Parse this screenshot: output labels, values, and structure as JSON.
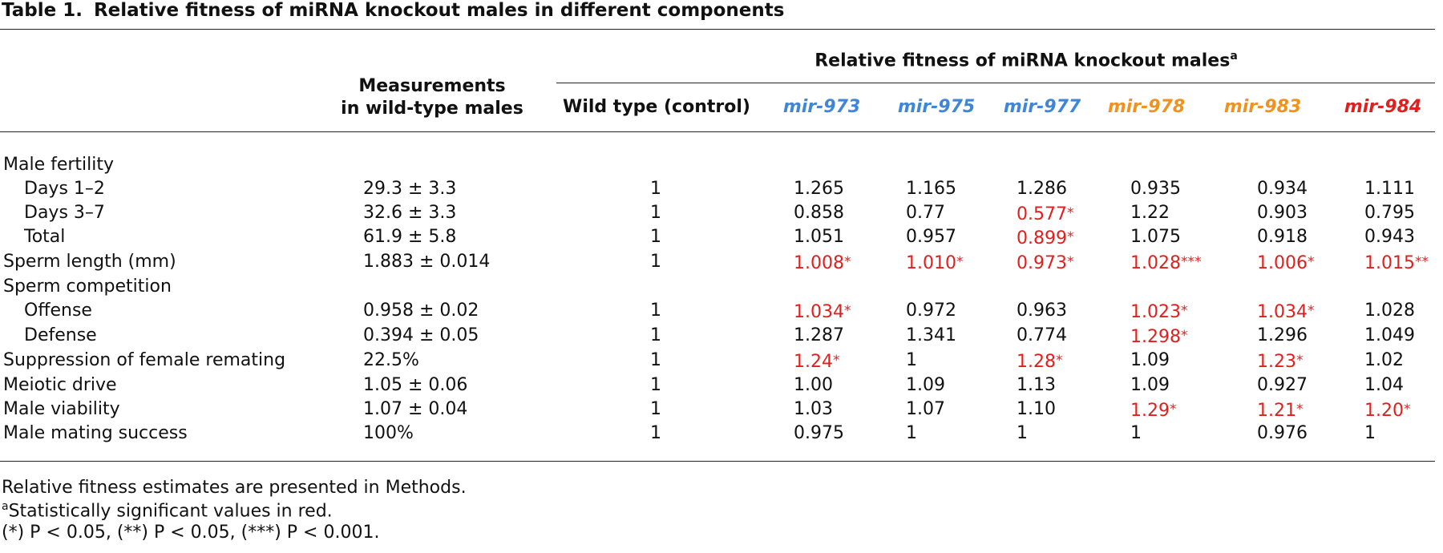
{
  "caption": {
    "label": "Table 1.",
    "title": "Relative fitness of miRNA knockout males in different components"
  },
  "header": {
    "group_label": "Relative fitness of miRNA knockout males",
    "group_sup": "a",
    "measurements_line1": "Measurements",
    "measurements_line2": "in wild-type males",
    "control_label": "Wild type (control)"
  },
  "colors": {
    "blue": "#3f86d9",
    "orange": "#f0921f",
    "red": "#e0201e"
  },
  "mirnas": [
    {
      "name": "mir-973",
      "color": "#3f86d9"
    },
    {
      "name": "mir-975",
      "color": "#3f86d9"
    },
    {
      "name": "mir-977",
      "color": "#3f86d9"
    },
    {
      "name": "mir-978",
      "color": "#f0921f"
    },
    {
      "name": "mir-983",
      "color": "#f0921f"
    },
    {
      "name": "mir-984",
      "color": "#e0201e"
    }
  ],
  "rows": [
    {
      "label": "Male fertility",
      "indent": false,
      "measurement": "",
      "control": "",
      "values": []
    },
    {
      "label": "Days 1–2",
      "indent": true,
      "measurement": "29.3 ± 3.3",
      "control": "1",
      "values": [
        {
          "v": "1.265"
        },
        {
          "v": "1.165"
        },
        {
          "v": "1.286"
        },
        {
          "v": "0.935"
        },
        {
          "v": "0.934"
        },
        {
          "v": "1.111"
        }
      ]
    },
    {
      "label": "Days 3–7",
      "indent": true,
      "measurement": "32.6 ± 3.3",
      "control": "1",
      "values": [
        {
          "v": "0.858"
        },
        {
          "v": "0.77"
        },
        {
          "v": "0.577",
          "sig": "*"
        },
        {
          "v": "1.22"
        },
        {
          "v": "0.903"
        },
        {
          "v": "0.795"
        }
      ]
    },
    {
      "label": "Total",
      "indent": true,
      "measurement": "61.9 ± 5.8",
      "control": "1",
      "values": [
        {
          "v": "1.051"
        },
        {
          "v": "0.957"
        },
        {
          "v": "0.899",
          "sig": "*"
        },
        {
          "v": "1.075"
        },
        {
          "v": "0.918"
        },
        {
          "v": "0.943"
        }
      ]
    },
    {
      "label": "Sperm length (mm)",
      "indent": false,
      "measurement": "1.883 ± 0.014",
      "control": "1",
      "values": [
        {
          "v": "1.008",
          "sig": "*"
        },
        {
          "v": "1.010",
          "sig": "*"
        },
        {
          "v": "0.973",
          "sig": "*"
        },
        {
          "v": "1.028",
          "sig": "***"
        },
        {
          "v": "1.006",
          "sig": "*"
        },
        {
          "v": "1.015",
          "sig": "**"
        }
      ]
    },
    {
      "label": "Sperm competition",
      "indent": false,
      "measurement": "",
      "control": "",
      "values": []
    },
    {
      "label": "Offense",
      "indent": true,
      "measurement": "0.958 ± 0.02",
      "control": "1",
      "values": [
        {
          "v": "1.034",
          "sig": "*"
        },
        {
          "v": "0.972"
        },
        {
          "v": "0.963"
        },
        {
          "v": "1.023",
          "sig": "*"
        },
        {
          "v": "1.034",
          "sig": "*"
        },
        {
          "v": "1.028"
        }
      ]
    },
    {
      "label": "Defense",
      "indent": true,
      "measurement": "0.394 ± 0.05",
      "control": "1",
      "values": [
        {
          "v": "1.287"
        },
        {
          "v": "1.341"
        },
        {
          "v": "0.774"
        },
        {
          "v": "1.298",
          "sig": "*"
        },
        {
          "v": "1.296"
        },
        {
          "v": "1.049"
        }
      ]
    },
    {
      "label": "Suppression of female remating",
      "indent": false,
      "measurement": "22.5%",
      "control": "1",
      "values": [
        {
          "v": "1.24",
          "sig": "*"
        },
        {
          "v": "1"
        },
        {
          "v": "1.28",
          "sig": "*"
        },
        {
          "v": "1.09"
        },
        {
          "v": "1.23",
          "sig": "*"
        },
        {
          "v": "1.02"
        }
      ]
    },
    {
      "label": "Meiotic drive",
      "indent": false,
      "measurement": "1.05 ± 0.06",
      "control": "1",
      "values": [
        {
          "v": "1.00"
        },
        {
          "v": "1.09"
        },
        {
          "v": "1.13"
        },
        {
          "v": "1.09"
        },
        {
          "v": "0.927"
        },
        {
          "v": "1.04"
        }
      ]
    },
    {
      "label": "Male viability",
      "indent": false,
      "measurement": "1.07 ± 0.04",
      "control": "1",
      "values": [
        {
          "v": "1.03"
        },
        {
          "v": "1.07"
        },
        {
          "v": "1.10"
        },
        {
          "v": "1.29",
          "sig": "*"
        },
        {
          "v": "1.21",
          "sig": "*"
        },
        {
          "v": "1.20",
          "sig": "*"
        }
      ]
    },
    {
      "label": "Male mating success",
      "indent": false,
      "measurement": "100%",
      "control": "1",
      "values": [
        {
          "v": "0.975"
        },
        {
          "v": "1"
        },
        {
          "v": "1"
        },
        {
          "v": "1"
        },
        {
          "v": "0.976"
        },
        {
          "v": "1"
        }
      ]
    }
  ],
  "footnotes": {
    "line1": "Relative fitness estimates are presented in Methods.",
    "line2_sup": "a",
    "line2": "Statistically significant values in red.",
    "line3": "(*) P < 0.05, (**) P < 0.05, (***) P < 0.001."
  }
}
